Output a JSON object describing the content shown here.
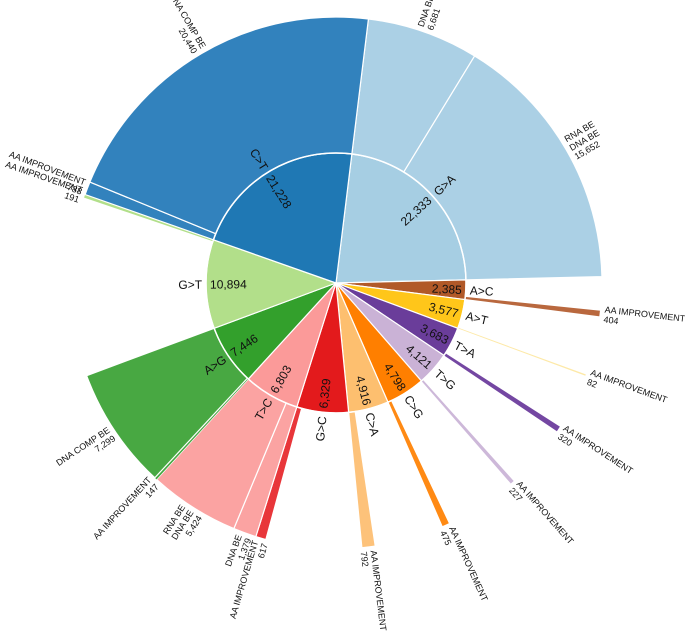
{
  "chart_data": {
    "type": "sunburst",
    "title": "",
    "center": [
      336,
      283
    ],
    "radii": {
      "inner_start": 0,
      "inner_end": 130,
      "outer_end": 266
    },
    "start_angle_deg": 277,
    "total": 98513,
    "categories": [
      {
        "name": "G>A",
        "value": 22333,
        "color": "#a6cee3",
        "child_color": "#abd0e5",
        "children": [
          {
            "label": [
              "DNA BE"
            ],
            "value": 6681
          },
          {
            "label": [
              "RNA BE",
              "DNA BE"
            ],
            "value": 15652
          }
        ]
      },
      {
        "name": "A>C",
        "value": 2385,
        "color": "#b15928",
        "child_color": "#b9683e",
        "children": [
          {
            "label": [
              "AA IMPROVEMENT"
            ],
            "value": 404
          }
        ]
      },
      {
        "name": "A>T",
        "value": 3577,
        "color": "#ffc61a",
        "child_color": "#fde9a8",
        "children": [
          {
            "label": [
              "AA IMPROVEMENT"
            ],
            "value": 82
          }
        ]
      },
      {
        "name": "T>A",
        "value": 3683,
        "color": "#6a3d9a",
        "child_color": "#7447a2",
        "children": [
          {
            "label": [
              "AA IMPROVEMENT"
            ],
            "value": 320
          }
        ]
      },
      {
        "name": "T>G",
        "value": 4121,
        "color": "#cab2d6",
        "child_color": "#cdb8d9",
        "children": [
          {
            "label": [
              "AA IMPROVEMENT"
            ],
            "value": 227
          }
        ]
      },
      {
        "name": "C>G",
        "value": 4798,
        "color": "#ff7f00",
        "child_color": "#ff8a14",
        "children": [
          {
            "label": [
              "AA IMPROVEMENT"
            ],
            "value": 475
          }
        ]
      },
      {
        "name": "C>A",
        "value": 4916,
        "color": "#fdbf6f",
        "child_color": "#fdc27a",
        "children": [
          {
            "label": [
              "AA IMPROVEMENT"
            ],
            "value": 792
          }
        ]
      },
      {
        "name": "G>C",
        "value": 6329,
        "color": "#e31a1c",
        "child_color": "#e8363a",
        "children": [
          {
            "label": [
              "AA IMPROVEMENT"
            ],
            "value": 617
          }
        ]
      },
      {
        "name": "T>C",
        "value": 6803,
        "color": "#fb9a99",
        "child_color": "#fba3a2",
        "children": [
          {
            "label": [
              "DNA BE"
            ],
            "value": 1379
          },
          {
            "label": [
              "RNA BE",
              "DNA BE"
            ],
            "value": 5424
          }
        ]
      },
      {
        "name": "A>G",
        "value": 7446,
        "color": "#33a02c",
        "child_color": "#48a842",
        "children": [
          {
            "label": [
              "AA IMPROVEMENT"
            ],
            "value": 147
          },
          {
            "label": [
              "DNA COMP BE"
            ],
            "value": 7299
          }
        ]
      },
      {
        "name": "G>T",
        "value": 10894,
        "color": "#b2df8a",
        "child_color": "#b2df8a",
        "children": [
          {
            "label": [
              "AA IMPROVEMENT"
            ],
            "value": 191
          }
        ]
      },
      {
        "name": "C>T",
        "value": 21228,
        "color": "#1f78b4",
        "child_color": "#3282bd",
        "children": [
          {
            "label": [
              "AA IMPROVEMENT"
            ],
            "value": 788
          },
          {
            "label": [
              "DNA COMP BE"
            ],
            "value": 20440
          }
        ]
      }
    ],
    "inner_ring_labels": [
      "G>A 22,333",
      "A>C 2,385",
      "A>T 3,577",
      "T>A 3,683",
      "T>G 4,121",
      "C>G 4,798",
      "C>A 4,916",
      "G>C 6,329",
      "T>C 6,803",
      "A>G 7,446",
      "G>T 10,894",
      "C>T 21,228"
    ],
    "outer_ring_labels": [
      "DNA BE 6,681",
      "RNA BE DNA BE 15,652",
      "AA IMPROVEMENT 404",
      "AA IMPROVEMENT 82",
      "AA IMPROVEMENT 320",
      "AA IMPROVEMENT 227",
      "AA IMPROVEMENT 475",
      "AA IMPROVEMENT 792",
      "AA IMPROVEMENT 617",
      "DNA BE 1,379",
      "RNA BE DNA BE 5,424",
      "AA IMPROVEMENT 147",
      "DNA COMP BE 7,299",
      "AA IMPROVEMENT 191",
      "AA IMPROVEMENT 788",
      "DNA COMP BE 20,440"
    ],
    "xlabel": "",
    "ylabel": "",
    "legend": "none"
  }
}
